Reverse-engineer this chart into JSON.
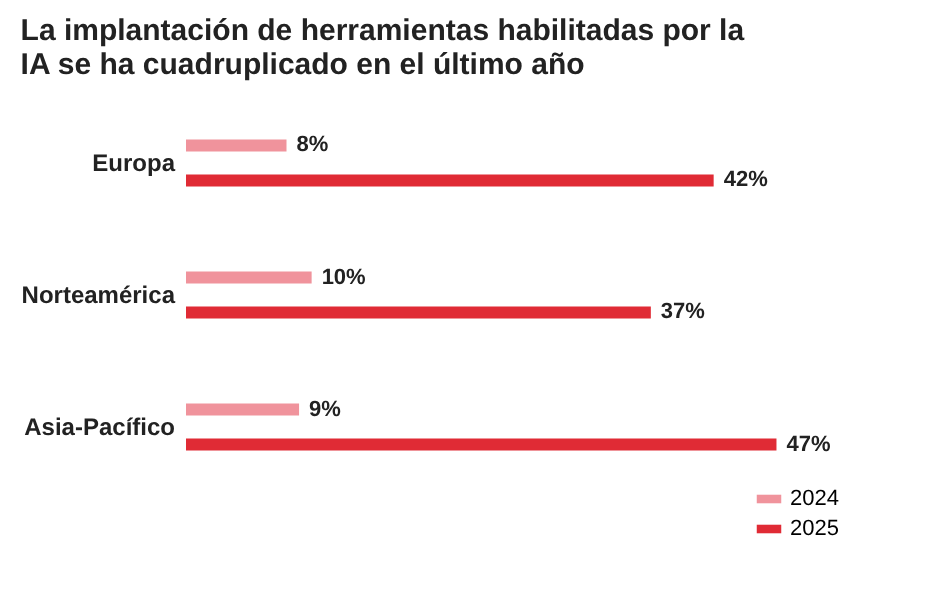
{
  "chart_data": {
    "type": "bar",
    "orientation": "horizontal",
    "title": "La implantación de herramientas habilitadas por la IA se ha cuadruplicado en el último año",
    "categories": [
      "Europa",
      "Norteamérica",
      "Asia-Pacífico"
    ],
    "series": [
      {
        "name": "2024",
        "color": "#f0939c",
        "values": [
          8,
          10,
          9
        ],
        "value_labels": [
          "8%",
          "10%",
          "9%"
        ]
      },
      {
        "name": "2025",
        "color": "#e02b35",
        "values": [
          42,
          37,
          47
        ],
        "value_labels": [
          "42%",
          "37%",
          "47%"
        ]
      }
    ],
    "legend": "bottom right",
    "grid": false
  }
}
